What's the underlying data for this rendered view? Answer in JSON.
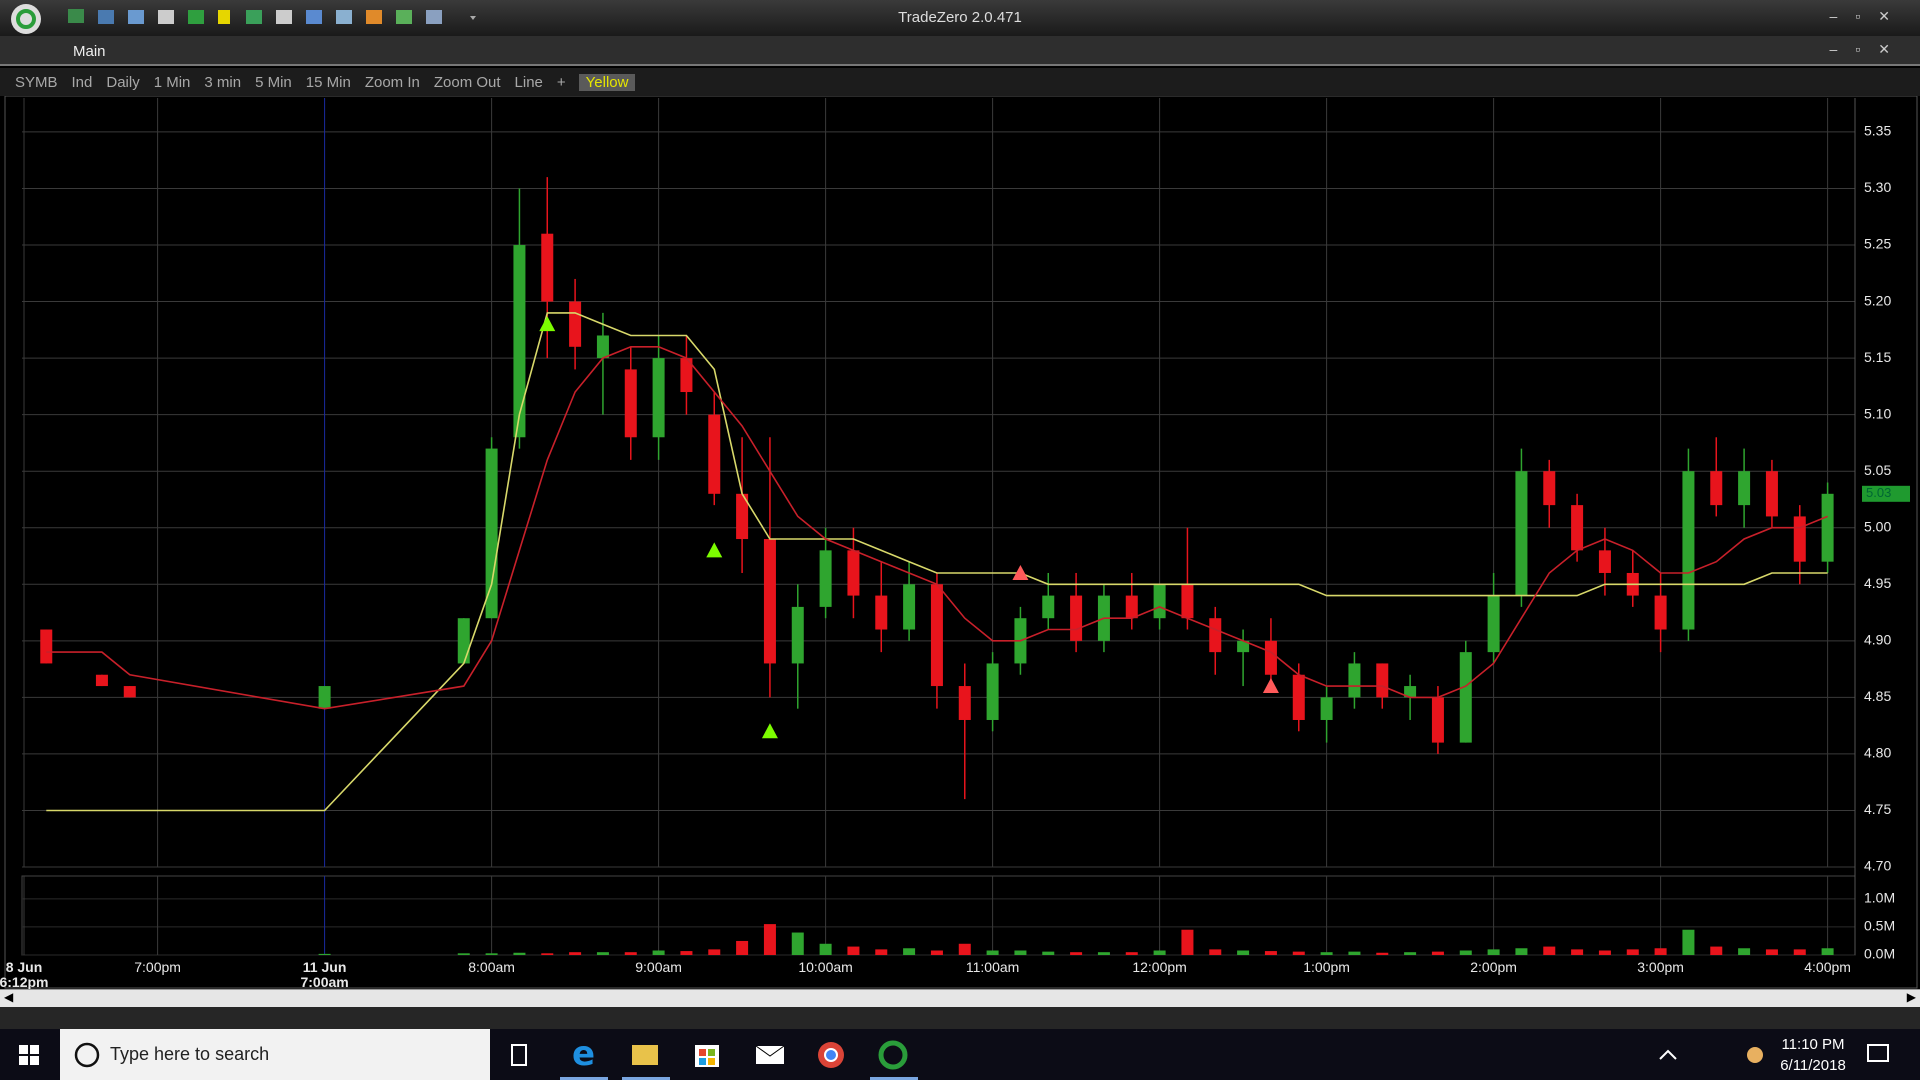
{
  "window": {
    "title": "TradeZero 2.0.471",
    "tab": "Main"
  },
  "toolbar": [
    "SYMB",
    "Ind",
    "Daily",
    "1 Min",
    "3 min",
    "5 Min",
    "15 Min",
    "Zoom In",
    "Zoom Out",
    "Line",
    "+",
    "Yellow"
  ],
  "chart_data": {
    "type": "candlestick",
    "x": [
      "8 Jun 6:20pm",
      "6:40pm",
      "6:50pm",
      "11 Jun 7:00am",
      "7:50am",
      "8:00am",
      "8:10am",
      "8:20am",
      "8:30am",
      "8:40am",
      "8:50am",
      "9:00am",
      "9:10am",
      "9:20am",
      "9:30am",
      "9:40am",
      "9:50am",
      "10:00am",
      "10:10am",
      "10:20am",
      "10:30am",
      "10:40am",
      "10:50am",
      "11:00am",
      "11:10am",
      "11:20am",
      "11:30am",
      "11:40am",
      "11:50am",
      "12:00pm",
      "12:10pm",
      "12:20pm",
      "12:30pm",
      "12:40pm",
      "12:50pm",
      "1:00pm",
      "1:10pm",
      "1:20pm",
      "1:30pm",
      "1:40pm",
      "1:50pm",
      "2:00pm",
      "2:10pm",
      "2:20pm",
      "2:30pm",
      "2:40pm",
      "2:50pm",
      "3:00pm",
      "3:10pm",
      "3:20pm",
      "3:30pm",
      "3:40pm",
      "3:50pm",
      "4:00pm"
    ],
    "open": [
      4.91,
      4.87,
      4.86,
      4.84,
      4.88,
      4.92,
      5.08,
      5.26,
      5.2,
      5.15,
      5.14,
      5.08,
      5.15,
      5.1,
      5.03,
      4.99,
      4.88,
      4.93,
      4.98,
      4.94,
      4.91,
      4.95,
      4.86,
      4.83,
      4.88,
      4.92,
      4.94,
      4.9,
      4.94,
      4.92,
      4.95,
      4.92,
      4.89,
      4.9,
      4.87,
      4.83,
      4.85,
      4.88,
      4.85,
      4.85,
      4.81,
      4.89,
      4.94,
      5.05,
      5.02,
      4.98,
      4.96,
      4.94,
      4.91,
      5.05,
      5.02,
      5.05,
      5.01,
      4.97
    ],
    "high": [
      4.91,
      4.87,
      4.86,
      4.86,
      4.92,
      5.08,
      5.3,
      5.31,
      5.22,
      5.19,
      5.16,
      5.17,
      5.17,
      5.12,
      5.08,
      5.08,
      4.95,
      5.0,
      5.0,
      4.97,
      4.97,
      4.96,
      4.88,
      4.89,
      4.93,
      4.96,
      4.96,
      4.95,
      4.96,
      4.95,
      5.0,
      4.93,
      4.91,
      4.92,
      4.88,
      4.86,
      4.89,
      4.88,
      4.87,
      4.86,
      4.9,
      4.96,
      5.07,
      5.06,
      5.03,
      5.0,
      4.98,
      4.96,
      5.07,
      5.08,
      5.07,
      5.06,
      5.02,
      5.04
    ],
    "low": [
      4.88,
      4.86,
      4.85,
      4.84,
      4.88,
      4.92,
      5.07,
      5.15,
      5.14,
      5.1,
      5.06,
      5.06,
      5.1,
      5.02,
      4.96,
      4.85,
      4.84,
      4.92,
      4.92,
      4.89,
      4.9,
      4.84,
      4.76,
      4.82,
      4.87,
      4.91,
      4.89,
      4.89,
      4.91,
      4.91,
      4.91,
      4.87,
      4.86,
      4.86,
      4.82,
      4.81,
      4.84,
      4.84,
      4.83,
      4.8,
      4.81,
      4.88,
      4.93,
      5.0,
      4.97,
      4.94,
      4.93,
      4.89,
      4.9,
      5.01,
      5.0,
      5.0,
      4.95,
      4.96
    ],
    "close": [
      4.88,
      4.86,
      4.85,
      4.86,
      4.92,
      5.07,
      5.25,
      5.2,
      5.16,
      5.17,
      5.08,
      5.15,
      5.12,
      5.03,
      4.99,
      4.88,
      4.93,
      4.98,
      4.94,
      4.91,
      4.95,
      4.86,
      4.83,
      4.88,
      4.92,
      4.94,
      4.9,
      4.94,
      4.92,
      4.95,
      4.92,
      4.89,
      4.9,
      4.87,
      4.83,
      4.85,
      4.88,
      4.85,
      4.86,
      4.81,
      4.89,
      4.94,
      5.05,
      5.02,
      4.98,
      4.96,
      4.94,
      4.91,
      5.05,
      5.02,
      5.05,
      5.01,
      4.97,
      5.03
    ],
    "volume": [
      0,
      0,
      0,
      0.02,
      0.03,
      0.03,
      0.04,
      0.03,
      0.05,
      0.05,
      0.05,
      0.08,
      0.07,
      0.1,
      0.25,
      0.55,
      0.4,
      0.2,
      0.15,
      0.1,
      0.12,
      0.08,
      0.2,
      0.08,
      0.08,
      0.06,
      0.05,
      0.05,
      0.05,
      0.08,
      0.45,
      0.1,
      0.08,
      0.07,
      0.06,
      0.05,
      0.06,
      0.04,
      0.05,
      0.06,
      0.08,
      0.1,
      0.12,
      0.15,
      0.1,
      0.08,
      0.1,
      0.12,
      0.45,
      0.15,
      0.12,
      0.1,
      0.1,
      0.12
    ],
    "up_color": "#2fa52f",
    "down_color": "#e8141c",
    "lines": [
      {
        "color": "#d8d86a",
        "values": [
          4.75,
          4.75,
          4.75,
          4.75,
          4.88,
          4.95,
          5.1,
          5.19,
          5.19,
          5.18,
          5.17,
          5.17,
          5.17,
          5.14,
          5.03,
          4.99,
          4.99,
          4.99,
          4.99,
          4.98,
          4.97,
          4.96,
          4.96,
          4.96,
          4.96,
          4.95,
          4.95,
          4.95,
          4.95,
          4.95,
          4.95,
          4.95,
          4.95,
          4.95,
          4.95,
          4.94,
          4.94,
          4.94,
          4.94,
          4.94,
          4.94,
          4.94,
          4.94,
          4.94,
          4.94,
          4.95,
          4.95,
          4.95,
          4.95,
          4.95,
          4.95,
          4.96,
          4.96,
          4.96
        ]
      },
      {
        "color": "#c8202a",
        "values": [
          4.89,
          4.89,
          4.87,
          4.84,
          4.86,
          4.9,
          4.98,
          5.06,
          5.12,
          5.15,
          5.16,
          5.16,
          5.15,
          5.12,
          5.09,
          5.05,
          5.01,
          4.99,
          4.98,
          4.97,
          4.96,
          4.95,
          4.92,
          4.9,
          4.9,
          4.91,
          4.91,
          4.92,
          4.92,
          4.93,
          4.92,
          4.91,
          4.9,
          4.89,
          4.87,
          4.86,
          4.86,
          4.86,
          4.85,
          4.85,
          4.86,
          4.88,
          4.92,
          4.96,
          4.98,
          4.99,
          4.98,
          4.96,
          4.96,
          4.97,
          4.99,
          5.0,
          5.0,
          5.01
        ]
      }
    ],
    "signals": [
      {
        "color": "#7cfc00",
        "x": [
          "11 Jun 8:20am",
          "11 Jun 9:20am",
          "11 Jun 9:40am"
        ],
        "values": [
          5.18,
          4.98,
          4.82
        ]
      },
      {
        "color": "#ff5a5a",
        "x": [
          "11 Jun 11:10am",
          "11 Jun 12:40pm"
        ],
        "values": [
          4.96,
          4.86
        ]
      }
    ],
    "last_price": 5.03,
    "ylim": [
      4.7,
      5.38
    ],
    "yticks": [
      {
        "value": 4.7,
        "label": "4.70"
      },
      4.75,
      {
        "value": 4.8,
        "label": "4.80"
      },
      4.85,
      {
        "value": 4.9,
        "label": "4.90"
      },
      4.95,
      {
        "value": 5,
        "label": "5.00"
      },
      5.05,
      {
        "value": 5.1,
        "label": "5.10"
      },
      5.15,
      {
        "value": 5.2,
        "label": "5.20"
      },
      5.25,
      {
        "value": 5.3,
        "label": "5.30"
      },
      5.35
    ],
    "volume_ylim": [
      0,
      1.3
    ],
    "volume_ticks": [
      {
        "value": 0,
        "label": "0.0M"
      },
      {
        "value": 0.5,
        "label": "0.5M"
      },
      {
        "value": 1,
        "label": "1.0M"
      }
    ],
    "xticks": [
      "8 Jun 6:12pm",
      "7:00pm",
      "11 Jun 7:00am",
      "8:00am",
      "9:00am",
      "10:00am",
      "11:00am",
      "12:00pm",
      "1:00pm",
      "2:00pm",
      "3:00pm",
      "4:00pm"
    ],
    "grid": true
  },
  "taskbar": {
    "search": "Type here to search",
    "time": "11:10 PM",
    "date": "6/11/2018"
  }
}
